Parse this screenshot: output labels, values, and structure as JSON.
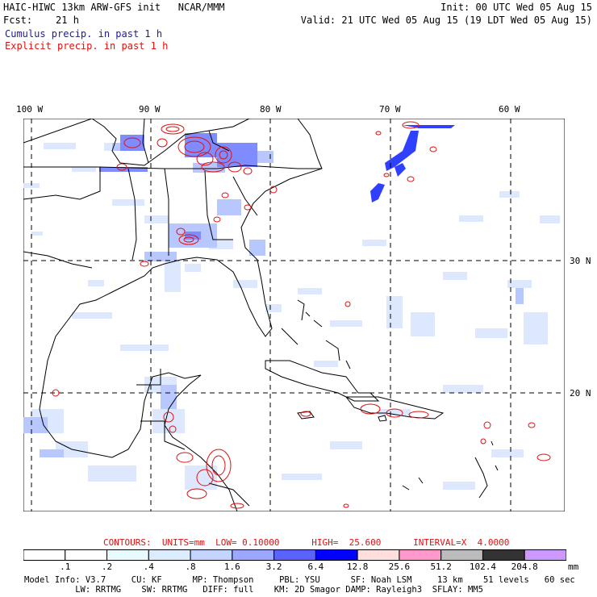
{
  "header": {
    "left_line1": "HAIC-HIWC 13km ARW-GFS init   NCAR/MMM",
    "left_line2": "Fcst:    21 h",
    "right_line1": "Init: 00 UTC Wed 05 Aug 15",
    "right_line2": "Valid: 21 UTC Wed 05 Aug 15 (19 LDT Wed 05 Aug 15)",
    "legend_cumulus": "Cumulus precip. in past 1 h",
    "legend_explicit": "Explicit precip. in past 1 h",
    "cumulus_color": "#1a1aa8",
    "explicit_color": "#e01010"
  },
  "map": {
    "lon_labels": [
      "100 W",
      "90 W",
      "80 W",
      "70 W",
      "60 W"
    ],
    "lat_labels": [
      "30 N",
      "20 N"
    ],
    "grid_style": "dashed",
    "coastline_color": "#000000",
    "cumulus_shading_colors": [
      "#dde8ff",
      "#b8c8ff",
      "#7f8cff",
      "#3040ff"
    ],
    "explicit_contour_color": "#e01010"
  },
  "contours": {
    "text": "CONTOURS:  UNITS=mm  LOW= 0.10000      HIGH=  25.600      INTERVAL=X  4.0000",
    "color": "#e01010"
  },
  "colorbar": {
    "unit": "mm",
    "labels": [
      ".1",
      ".2",
      ".4",
      ".8",
      "1.6",
      "3.2",
      "6.4",
      "12.8",
      "25.6",
      "51.2",
      "102.4",
      "204.8"
    ],
    "colors": [
      "#ffffff",
      "#ffffff",
      "#e8fbff",
      "#dcecff",
      "#c2d4ff",
      "#9ca8ff",
      "#5b63ff",
      "#0000ff",
      "#ffdede",
      "#ff99cc",
      "#bcbcbc",
      "#333333",
      "#cc99ff"
    ]
  },
  "footer": {
    "line1": "Model Info: V3.7     CU: KF      MP: Thompson     PBL: YSU      SF: Noah LSM     13 km    51 levels   60 sec",
    "line2": "          LW: RRTMG    SW: RRTMG   DIFF: full    KM: 2D Smagor DAMP: Rayleigh3  SFLAY: MM5"
  }
}
